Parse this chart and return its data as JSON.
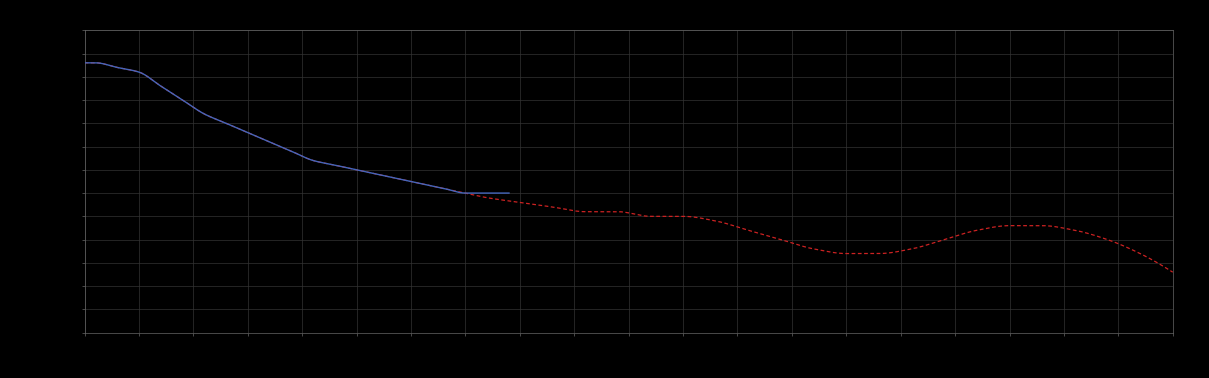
{
  "background_color": "#000000",
  "plot_bg_color": "#000000",
  "grid_color": "#333333",
  "line_color_blue": "#4466bb",
  "line_color_red": "#cc2222",
  "figsize": [
    12.09,
    3.78
  ],
  "dpi": 100,
  "spine_color": "#666666",
  "tick_color": "#666666",
  "grid_alpha": 1.0,
  "grid_linewidth": 0.5,
  "blue_x": [
    0.0,
    0.01,
    0.03,
    0.05,
    0.07,
    0.09,
    0.11,
    0.13,
    0.15,
    0.17,
    0.19,
    0.21,
    0.23,
    0.25,
    0.27,
    0.29,
    0.31,
    0.33,
    0.35,
    0.37,
    0.39
  ],
  "blue_y": [
    78,
    78,
    77,
    76,
    73,
    70,
    67,
    65,
    63,
    61,
    59,
    57,
    56,
    55,
    54,
    53,
    52,
    51,
    50,
    50,
    50
  ],
  "red_x": [
    0.0,
    0.01,
    0.03,
    0.05,
    0.07,
    0.09,
    0.11,
    0.13,
    0.15,
    0.17,
    0.19,
    0.21,
    0.23,
    0.25,
    0.27,
    0.29,
    0.31,
    0.33,
    0.35,
    0.37,
    0.4,
    0.43,
    0.46,
    0.49,
    0.52,
    0.55,
    0.58,
    0.61,
    0.64,
    0.67,
    0.7,
    0.73,
    0.76,
    0.79,
    0.82,
    0.85,
    0.88,
    0.91,
    0.94,
    0.97,
    1.0
  ],
  "red_y": [
    78,
    78,
    77,
    76,
    73,
    70,
    67,
    65,
    63,
    61,
    59,
    57,
    56,
    55,
    54,
    53,
    52,
    51,
    50,
    49,
    48,
    47,
    46,
    46,
    45,
    45,
    44,
    42,
    40,
    38,
    37,
    37,
    38,
    40,
    42,
    43,
    43,
    42,
    40,
    37,
    33
  ]
}
